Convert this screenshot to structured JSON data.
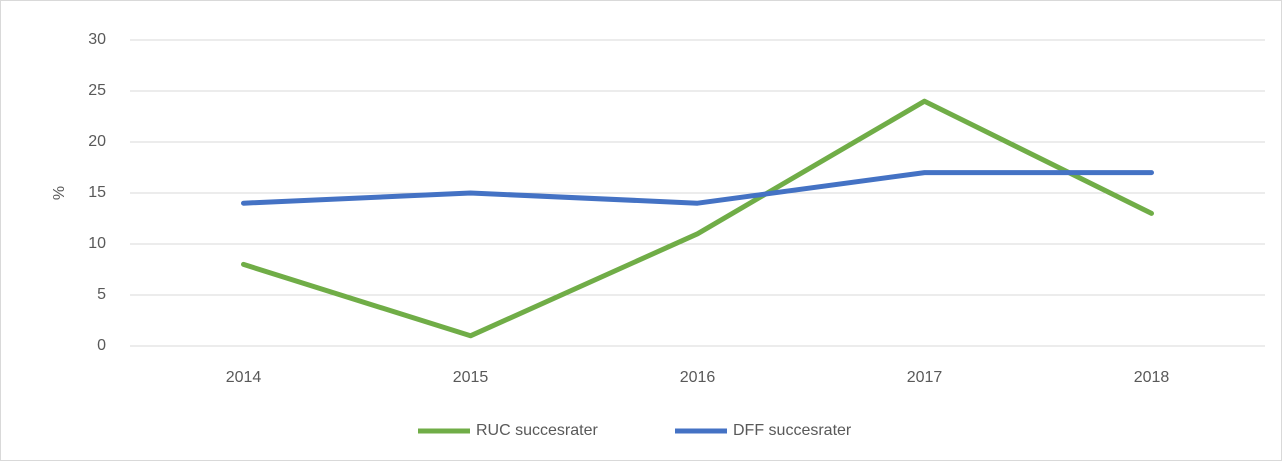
{
  "chart_data": {
    "type": "line",
    "y_label": "%",
    "categories": [
      "2014",
      "2015",
      "2016",
      "2017",
      "2018"
    ],
    "series": [
      {
        "name": "RUC succesrater",
        "color": "#70ad47",
        "values": [
          8,
          1,
          11,
          24,
          13
        ]
      },
      {
        "name": "DFF succesrater",
        "color": "#4472c4",
        "values": [
          14,
          15,
          14,
          17,
          17
        ]
      }
    ],
    "ylim": [
      0,
      30
    ],
    "yticks": [
      0,
      5,
      10,
      15,
      20,
      25,
      30
    ],
    "grid": true,
    "legend": "bottom"
  }
}
